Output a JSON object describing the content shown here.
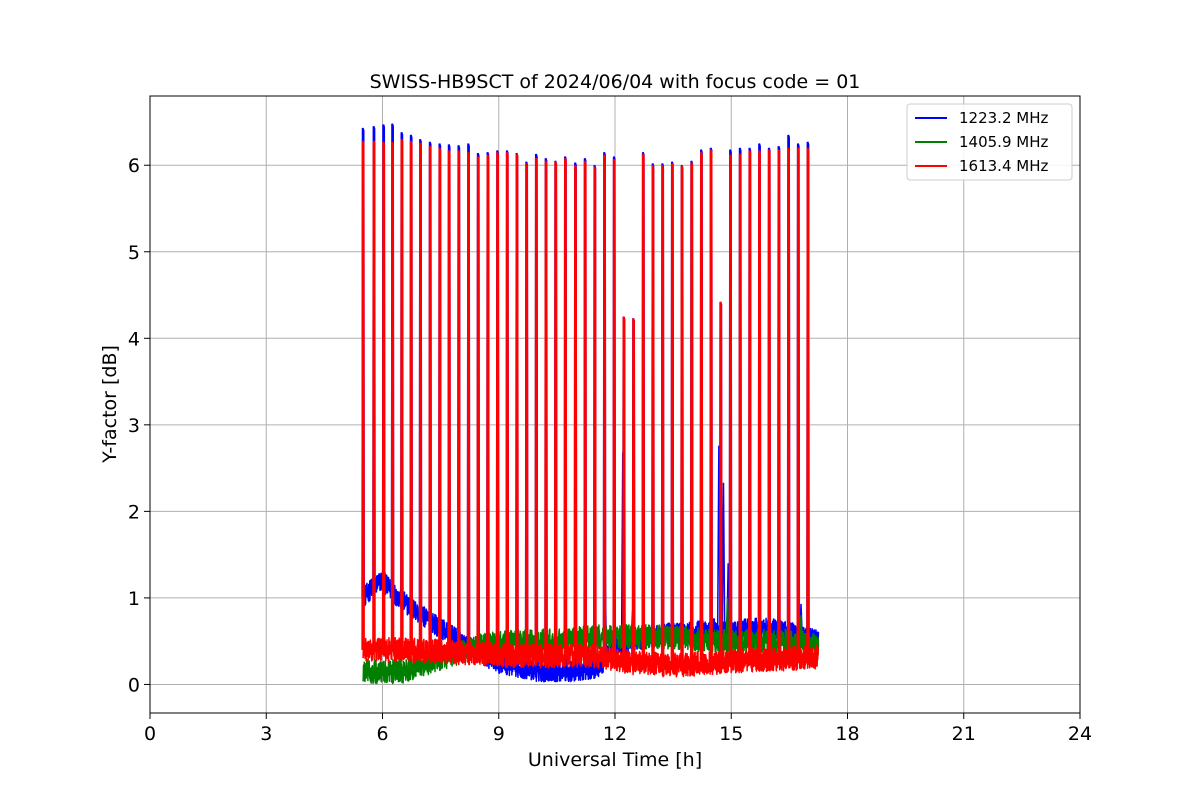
{
  "chart_data": {
    "type": "line",
    "title": "SWISS-HB9SCT of 2024/06/04 with focus code = 01",
    "xlabel": "Universal Time [h]",
    "ylabel": "Y-factor [dB]",
    "xlim": [
      0,
      24
    ],
    "ylim": [
      -0.33,
      6.8
    ],
    "xticks": [
      0,
      3,
      6,
      9,
      12,
      15,
      18,
      21,
      24
    ],
    "yticks": [
      0,
      1,
      2,
      3,
      4,
      5,
      6
    ],
    "grid": true,
    "legend_position": "top-right",
    "x_range_data": [
      5.5,
      17.25
    ],
    "series": [
      {
        "name": "1223.2 MHz",
        "color": "#0000ff",
        "baseline": [
          [
            5.5,
            1.0
          ],
          [
            5.8,
            1.15
          ],
          [
            6.0,
            1.2
          ],
          [
            6.3,
            1.05
          ],
          [
            6.7,
            0.9
          ],
          [
            7.0,
            0.8
          ],
          [
            7.5,
            0.65
          ],
          [
            8.0,
            0.5
          ],
          [
            8.5,
            0.35
          ],
          [
            9.0,
            0.25
          ],
          [
            10.0,
            0.15
          ],
          [
            11.0,
            0.15
          ],
          [
            11.6,
            0.2
          ],
          [
            12.0,
            0.45
          ],
          [
            12.5,
            0.5
          ],
          [
            13.0,
            0.55
          ],
          [
            13.5,
            0.6
          ],
          [
            14.0,
            0.6
          ],
          [
            14.5,
            0.65
          ],
          [
            15.0,
            0.6
          ],
          [
            15.5,
            0.65
          ],
          [
            16.0,
            0.65
          ],
          [
            16.5,
            0.6
          ],
          [
            17.0,
            0.55
          ],
          [
            17.25,
            0.5
          ]
        ],
        "noise": 0.12,
        "spikes": [
          [
            5.5,
            6.43
          ],
          [
            5.78,
            6.45
          ],
          [
            6.03,
            6.47
          ],
          [
            6.26,
            6.48
          ],
          [
            6.5,
            6.38
          ],
          [
            6.74,
            6.35
          ],
          [
            6.98,
            6.3
          ],
          [
            7.23,
            6.27
          ],
          [
            7.48,
            6.25
          ],
          [
            7.72,
            6.24
          ],
          [
            7.97,
            6.23
          ],
          [
            8.22,
            6.25
          ],
          [
            8.47,
            6.14
          ],
          [
            8.72,
            6.15
          ],
          [
            8.97,
            6.17
          ],
          [
            9.22,
            6.17
          ],
          [
            9.47,
            6.14
          ],
          [
            9.72,
            6.04
          ],
          [
            9.97,
            6.13
          ],
          [
            10.22,
            6.08
          ],
          [
            10.47,
            6.05
          ],
          [
            10.72,
            6.1
          ],
          [
            10.98,
            6.03
          ],
          [
            11.23,
            6.08
          ],
          [
            11.48,
            6.0
          ],
          [
            11.73,
            6.15
          ],
          [
            11.98,
            6.1
          ],
          [
            12.23,
            4.25
          ],
          [
            12.48,
            4.23
          ],
          [
            12.73,
            6.15
          ],
          [
            12.98,
            6.02
          ],
          [
            13.23,
            6.02
          ],
          [
            13.48,
            6.04
          ],
          [
            13.73,
            6.0
          ],
          [
            13.98,
            6.05
          ],
          [
            14.23,
            6.18
          ],
          [
            14.48,
            6.2
          ],
          [
            14.73,
            4.42
          ],
          [
            14.98,
            6.18
          ],
          [
            15.23,
            6.2
          ],
          [
            15.48,
            6.2
          ],
          [
            15.73,
            6.25
          ],
          [
            15.98,
            6.2
          ],
          [
            16.23,
            6.22
          ],
          [
            16.48,
            6.35
          ],
          [
            16.73,
            6.25
          ],
          [
            16.98,
            6.27
          ]
        ],
        "features": [
          [
            11.75,
            1.2
          ],
          [
            12.2,
            2.68
          ],
          [
            14.68,
            2.76
          ],
          [
            14.8,
            2.33
          ],
          [
            14.92,
            1.4
          ],
          [
            16.8,
            0.93
          ]
        ]
      },
      {
        "name": "1405.9 MHz",
        "color": "#008000",
        "baseline": [
          [
            5.5,
            0.15
          ],
          [
            6.5,
            0.15
          ],
          [
            7.5,
            0.3
          ],
          [
            8.5,
            0.45
          ],
          [
            9.5,
            0.5
          ],
          [
            10.5,
            0.5
          ],
          [
            11.5,
            0.55
          ],
          [
            12.5,
            0.55
          ],
          [
            13.5,
            0.55
          ],
          [
            14.5,
            0.5
          ],
          [
            15.5,
            0.5
          ],
          [
            16.5,
            0.5
          ],
          [
            17.25,
            0.45
          ]
        ],
        "noise": 0.14,
        "spikes": [],
        "features": [
          [
            12.45,
            0.85
          ],
          [
            14.9,
            1.0
          ],
          [
            16.8,
            0.8
          ]
        ]
      },
      {
        "name": "1613.4 MHz",
        "color": "#ff0000",
        "baseline": [
          [
            5.5,
            0.4
          ],
          [
            6.5,
            0.4
          ],
          [
            7.5,
            0.38
          ],
          [
            8.5,
            0.35
          ],
          [
            9.5,
            0.33
          ],
          [
            10.5,
            0.33
          ],
          [
            11.5,
            0.33
          ],
          [
            12.5,
            0.25
          ],
          [
            13.5,
            0.22
          ],
          [
            14.5,
            0.25
          ],
          [
            15.5,
            0.28
          ],
          [
            16.5,
            0.3
          ],
          [
            17.25,
            0.32
          ]
        ],
        "noise": 0.14,
        "spikes": [
          [
            5.5,
            6.28
          ],
          [
            5.78,
            6.28
          ],
          [
            6.03,
            6.27
          ],
          [
            6.26,
            6.27
          ],
          [
            6.5,
            6.3
          ],
          [
            6.74,
            6.28
          ],
          [
            6.98,
            6.26
          ],
          [
            7.23,
            6.22
          ],
          [
            7.48,
            6.2
          ],
          [
            7.72,
            6.17
          ],
          [
            7.97,
            6.17
          ],
          [
            8.22,
            6.15
          ],
          [
            8.47,
            6.1
          ],
          [
            8.72,
            6.12
          ],
          [
            8.97,
            6.15
          ],
          [
            9.22,
            6.15
          ],
          [
            9.47,
            6.13
          ],
          [
            9.72,
            6.02
          ],
          [
            9.97,
            6.08
          ],
          [
            10.22,
            6.05
          ],
          [
            10.47,
            6.04
          ],
          [
            10.72,
            6.08
          ],
          [
            10.98,
            6.0
          ],
          [
            11.23,
            6.05
          ],
          [
            11.48,
            5.98
          ],
          [
            11.73,
            6.12
          ],
          [
            11.98,
            6.07
          ],
          [
            12.23,
            4.25
          ],
          [
            12.48,
            4.23
          ],
          [
            12.73,
            6.13
          ],
          [
            12.98,
            6.0
          ],
          [
            13.23,
            6.0
          ],
          [
            13.48,
            6.02
          ],
          [
            13.73,
            5.99
          ],
          [
            13.98,
            6.03
          ],
          [
            14.23,
            6.15
          ],
          [
            14.48,
            6.18
          ],
          [
            14.73,
            4.42
          ],
          [
            14.98,
            6.12
          ],
          [
            15.23,
            6.13
          ],
          [
            15.48,
            6.17
          ],
          [
            15.73,
            6.17
          ],
          [
            15.98,
            6.18
          ],
          [
            16.23,
            6.18
          ],
          [
            16.48,
            6.2
          ],
          [
            16.73,
            6.2
          ],
          [
            16.98,
            6.2
          ]
        ],
        "features": []
      }
    ]
  }
}
